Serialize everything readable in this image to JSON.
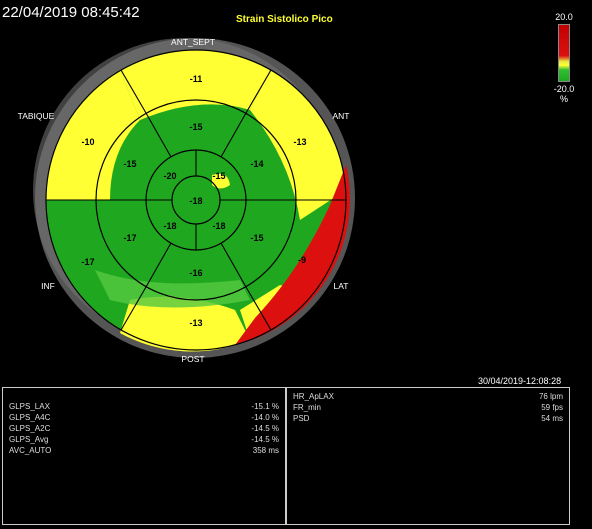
{
  "header": {
    "acquired_datetime": "22/04/2019 08:45:42",
    "title": "Strain Sistolico Pico",
    "processed_datetime": "30/04/2019-12:08:28"
  },
  "scale": {
    "max": "20.0",
    "min": "-20.0",
    "unit": "%",
    "colors": {
      "high": "#c00000",
      "mid": "#ffff33",
      "low": "#1fa81f"
    }
  },
  "walls": {
    "ant_sept": "ANT_SEPT",
    "ant": "ANT",
    "lat": "LAT",
    "post": "POST",
    "inf": "INF",
    "tabique": "TABIQUE"
  },
  "segments": {
    "basal": [
      -11,
      -13,
      -9,
      -13,
      -17,
      -10
    ],
    "mid": [
      -15,
      -14,
      -15,
      -16,
      -17,
      -15
    ],
    "apical": [
      -15,
      -18,
      -18,
      -20
    ],
    "apex": -18
  },
  "results_left": [
    {
      "label": "GLPS_LAX",
      "value": "-15.1 %"
    },
    {
      "label": "GLPS_A4C",
      "value": "-14.0 %"
    },
    {
      "label": "GLPS_A2C",
      "value": "-14.5 %"
    },
    {
      "label": "GLPS_Avg",
      "value": "-14.5 %"
    },
    {
      "label": "AVC_AUTO",
      "value": "358 ms"
    }
  ],
  "results_right": [
    {
      "label": "HR_ApLAX",
      "value": "76 lpm"
    },
    {
      "label": "FR_min",
      "value": "59 fps"
    },
    {
      "label": "PSD",
      "value": "54 ms"
    }
  ]
}
